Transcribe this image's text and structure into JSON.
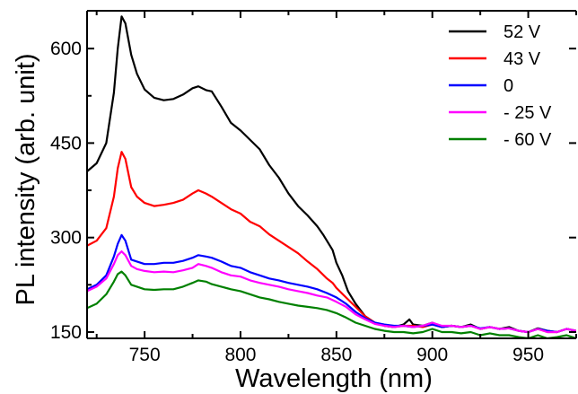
{
  "chart_data": {
    "type": "line",
    "title": "",
    "xlabel": "Wavelength (nm)",
    "ylabel": "PL intensity (arb. unit)",
    "xlim": [
      720,
      975
    ],
    "ylim": [
      140,
      660
    ],
    "xticks": [
      750,
      800,
      850,
      900,
      950
    ],
    "yticks": [
      150,
      300,
      450,
      600
    ],
    "grid": false,
    "legend_position": "top-right",
    "series": [
      {
        "name": "52 V",
        "color": "#000000",
        "points": [
          [
            720,
            405
          ],
          [
            725,
            418
          ],
          [
            730,
            450
          ],
          [
            734,
            530
          ],
          [
            736,
            600
          ],
          [
            738,
            651
          ],
          [
            740,
            640
          ],
          [
            743,
            590
          ],
          [
            746,
            560
          ],
          [
            750,
            535
          ],
          [
            755,
            522
          ],
          [
            760,
            518
          ],
          [
            765,
            520
          ],
          [
            770,
            527
          ],
          [
            775,
            537
          ],
          [
            778,
            540
          ],
          [
            782,
            534
          ],
          [
            785,
            532
          ],
          [
            790,
            508
          ],
          [
            795,
            482
          ],
          [
            800,
            470
          ],
          [
            805,
            455
          ],
          [
            810,
            440
          ],
          [
            815,
            415
          ],
          [
            820,
            395
          ],
          [
            825,
            370
          ],
          [
            830,
            350
          ],
          [
            835,
            335
          ],
          [
            840,
            318
          ],
          [
            843,
            305
          ],
          [
            845,
            295
          ],
          [
            848,
            280
          ],
          [
            850,
            260
          ],
          [
            853,
            240
          ],
          [
            856,
            215
          ],
          [
            860,
            195
          ],
          [
            865,
            175
          ],
          [
            870,
            165
          ],
          [
            875,
            160
          ],
          [
            880,
            158
          ],
          [
            885,
            162
          ],
          [
            888,
            170
          ],
          [
            890,
            162
          ],
          [
            895,
            160
          ],
          [
            900,
            165
          ],
          [
            905,
            158
          ],
          [
            910,
            160
          ],
          [
            915,
            158
          ],
          [
            920,
            162
          ],
          [
            925,
            155
          ],
          [
            930,
            158
          ],
          [
            935,
            155
          ],
          [
            940,
            158
          ],
          [
            945,
            152
          ],
          [
            950,
            150
          ],
          [
            955,
            156
          ],
          [
            960,
            152
          ],
          [
            965,
            150
          ],
          [
            970,
            155
          ],
          [
            975,
            152
          ]
        ]
      },
      {
        "name": "43 V",
        "color": "#ff0000",
        "points": [
          [
            720,
            287
          ],
          [
            725,
            295
          ],
          [
            730,
            315
          ],
          [
            734,
            365
          ],
          [
            736,
            410
          ],
          [
            738,
            436
          ],
          [
            740,
            425
          ],
          [
            743,
            380
          ],
          [
            746,
            365
          ],
          [
            750,
            355
          ],
          [
            755,
            350
          ],
          [
            760,
            352
          ],
          [
            765,
            355
          ],
          [
            770,
            360
          ],
          [
            775,
            370
          ],
          [
            778,
            375
          ],
          [
            782,
            370
          ],
          [
            785,
            365
          ],
          [
            790,
            355
          ],
          [
            795,
            345
          ],
          [
            800,
            338
          ],
          [
            805,
            325
          ],
          [
            810,
            318
          ],
          [
            815,
            305
          ],
          [
            820,
            295
          ],
          [
            825,
            285
          ],
          [
            830,
            275
          ],
          [
            835,
            262
          ],
          [
            840,
            250
          ],
          [
            845,
            235
          ],
          [
            848,
            228
          ],
          [
            850,
            220
          ],
          [
            855,
            205
          ],
          [
            860,
            190
          ],
          [
            865,
            175
          ],
          [
            870,
            165
          ],
          [
            875,
            160
          ],
          [
            880,
            158
          ],
          [
            885,
            160
          ],
          [
            890,
            160
          ],
          [
            895,
            158
          ],
          [
            900,
            162
          ],
          [
            905,
            158
          ],
          [
            910,
            160
          ],
          [
            915,
            158
          ],
          [
            920,
            160
          ],
          [
            925,
            155
          ],
          [
            930,
            158
          ],
          [
            935,
            155
          ],
          [
            940,
            156
          ],
          [
            945,
            152
          ],
          [
            950,
            150
          ],
          [
            955,
            155
          ],
          [
            960,
            150
          ],
          [
            965,
            150
          ],
          [
            970,
            155
          ],
          [
            975,
            152
          ]
        ]
      },
      {
        "name": "0",
        "color": "#0000ff",
        "points": [
          [
            720,
            218
          ],
          [
            725,
            225
          ],
          [
            730,
            240
          ],
          [
            734,
            270
          ],
          [
            736,
            290
          ],
          [
            738,
            304
          ],
          [
            740,
            295
          ],
          [
            743,
            265
          ],
          [
            746,
            262
          ],
          [
            750,
            258
          ],
          [
            755,
            258
          ],
          [
            760,
            260
          ],
          [
            765,
            260
          ],
          [
            770,
            263
          ],
          [
            775,
            268
          ],
          [
            778,
            272
          ],
          [
            782,
            270
          ],
          [
            785,
            268
          ],
          [
            790,
            262
          ],
          [
            795,
            255
          ],
          [
            800,
            252
          ],
          [
            805,
            245
          ],
          [
            810,
            240
          ],
          [
            815,
            235
          ],
          [
            820,
            232
          ],
          [
            825,
            228
          ],
          [
            830,
            225
          ],
          [
            835,
            222
          ],
          [
            840,
            218
          ],
          [
            845,
            212
          ],
          [
            850,
            205
          ],
          [
            855,
            195
          ],
          [
            860,
            182
          ],
          [
            865,
            172
          ],
          [
            870,
            165
          ],
          [
            875,
            162
          ],
          [
            880,
            160
          ],
          [
            885,
            160
          ],
          [
            890,
            158
          ],
          [
            895,
            160
          ],
          [
            900,
            162
          ],
          [
            905,
            158
          ],
          [
            910,
            160
          ],
          [
            915,
            158
          ],
          [
            920,
            160
          ],
          [
            925,
            156
          ],
          [
            930,
            158
          ],
          [
            935,
            155
          ],
          [
            940,
            156
          ],
          [
            945,
            152
          ],
          [
            950,
            150
          ],
          [
            955,
            155
          ],
          [
            960,
            152
          ],
          [
            965,
            150
          ],
          [
            970,
            155
          ],
          [
            975,
            152
          ]
        ]
      },
      {
        "name": "- 25 V",
        "color": "#ff00ff",
        "points": [
          [
            720,
            215
          ],
          [
            725,
            222
          ],
          [
            730,
            235
          ],
          [
            734,
            258
          ],
          [
            736,
            272
          ],
          [
            738,
            278
          ],
          [
            740,
            272
          ],
          [
            743,
            255
          ],
          [
            746,
            250
          ],
          [
            750,
            247
          ],
          [
            755,
            245
          ],
          [
            760,
            246
          ],
          [
            765,
            245
          ],
          [
            770,
            248
          ],
          [
            775,
            252
          ],
          [
            778,
            258
          ],
          [
            782,
            255
          ],
          [
            785,
            252
          ],
          [
            790,
            245
          ],
          [
            795,
            240
          ],
          [
            800,
            238
          ],
          [
            805,
            232
          ],
          [
            810,
            228
          ],
          [
            815,
            225
          ],
          [
            820,
            222
          ],
          [
            825,
            218
          ],
          [
            830,
            215
          ],
          [
            835,
            212
          ],
          [
            840,
            208
          ],
          [
            845,
            205
          ],
          [
            850,
            198
          ],
          [
            855,
            190
          ],
          [
            860,
            178
          ],
          [
            865,
            170
          ],
          [
            870,
            163
          ],
          [
            875,
            160
          ],
          [
            880,
            158
          ],
          [
            885,
            160
          ],
          [
            890,
            158
          ],
          [
            895,
            160
          ],
          [
            900,
            165
          ],
          [
            905,
            160
          ],
          [
            910,
            160
          ],
          [
            915,
            158
          ],
          [
            920,
            160
          ],
          [
            925,
            155
          ],
          [
            930,
            158
          ],
          [
            935,
            155
          ],
          [
            940,
            156
          ],
          [
            945,
            152
          ],
          [
            950,
            150
          ],
          [
            955,
            155
          ],
          [
            960,
            150
          ],
          [
            965,
            150
          ],
          [
            970,
            155
          ],
          [
            975,
            152
          ]
        ]
      },
      {
        "name": "- 60 V",
        "color": "#008000",
        "points": [
          [
            720,
            188
          ],
          [
            725,
            195
          ],
          [
            730,
            210
          ],
          [
            734,
            230
          ],
          [
            736,
            242
          ],
          [
            738,
            246
          ],
          [
            740,
            240
          ],
          [
            743,
            225
          ],
          [
            746,
            222
          ],
          [
            750,
            218
          ],
          [
            755,
            217
          ],
          [
            760,
            218
          ],
          [
            765,
            218
          ],
          [
            770,
            222
          ],
          [
            775,
            228
          ],
          [
            778,
            232
          ],
          [
            782,
            230
          ],
          [
            785,
            226
          ],
          [
            790,
            222
          ],
          [
            795,
            218
          ],
          [
            800,
            215
          ],
          [
            805,
            210
          ],
          [
            810,
            205
          ],
          [
            815,
            202
          ],
          [
            820,
            198
          ],
          [
            825,
            195
          ],
          [
            830,
            192
          ],
          [
            835,
            190
          ],
          [
            840,
            188
          ],
          [
            845,
            185
          ],
          [
            850,
            180
          ],
          [
            855,
            173
          ],
          [
            860,
            165
          ],
          [
            865,
            160
          ],
          [
            870,
            155
          ],
          [
            875,
            152
          ],
          [
            880,
            150
          ],
          [
            885,
            150
          ],
          [
            890,
            148
          ],
          [
            895,
            150
          ],
          [
            900,
            155
          ],
          [
            905,
            150
          ],
          [
            910,
            150
          ],
          [
            915,
            148
          ],
          [
            920,
            150
          ],
          [
            925,
            145
          ],
          [
            930,
            148
          ],
          [
            935,
            145
          ],
          [
            940,
            145
          ],
          [
            945,
            142
          ],
          [
            950,
            140
          ],
          [
            955,
            145
          ],
          [
            960,
            140
          ],
          [
            965,
            142
          ],
          [
            970,
            145
          ],
          [
            975,
            140
          ]
        ]
      }
    ]
  }
}
